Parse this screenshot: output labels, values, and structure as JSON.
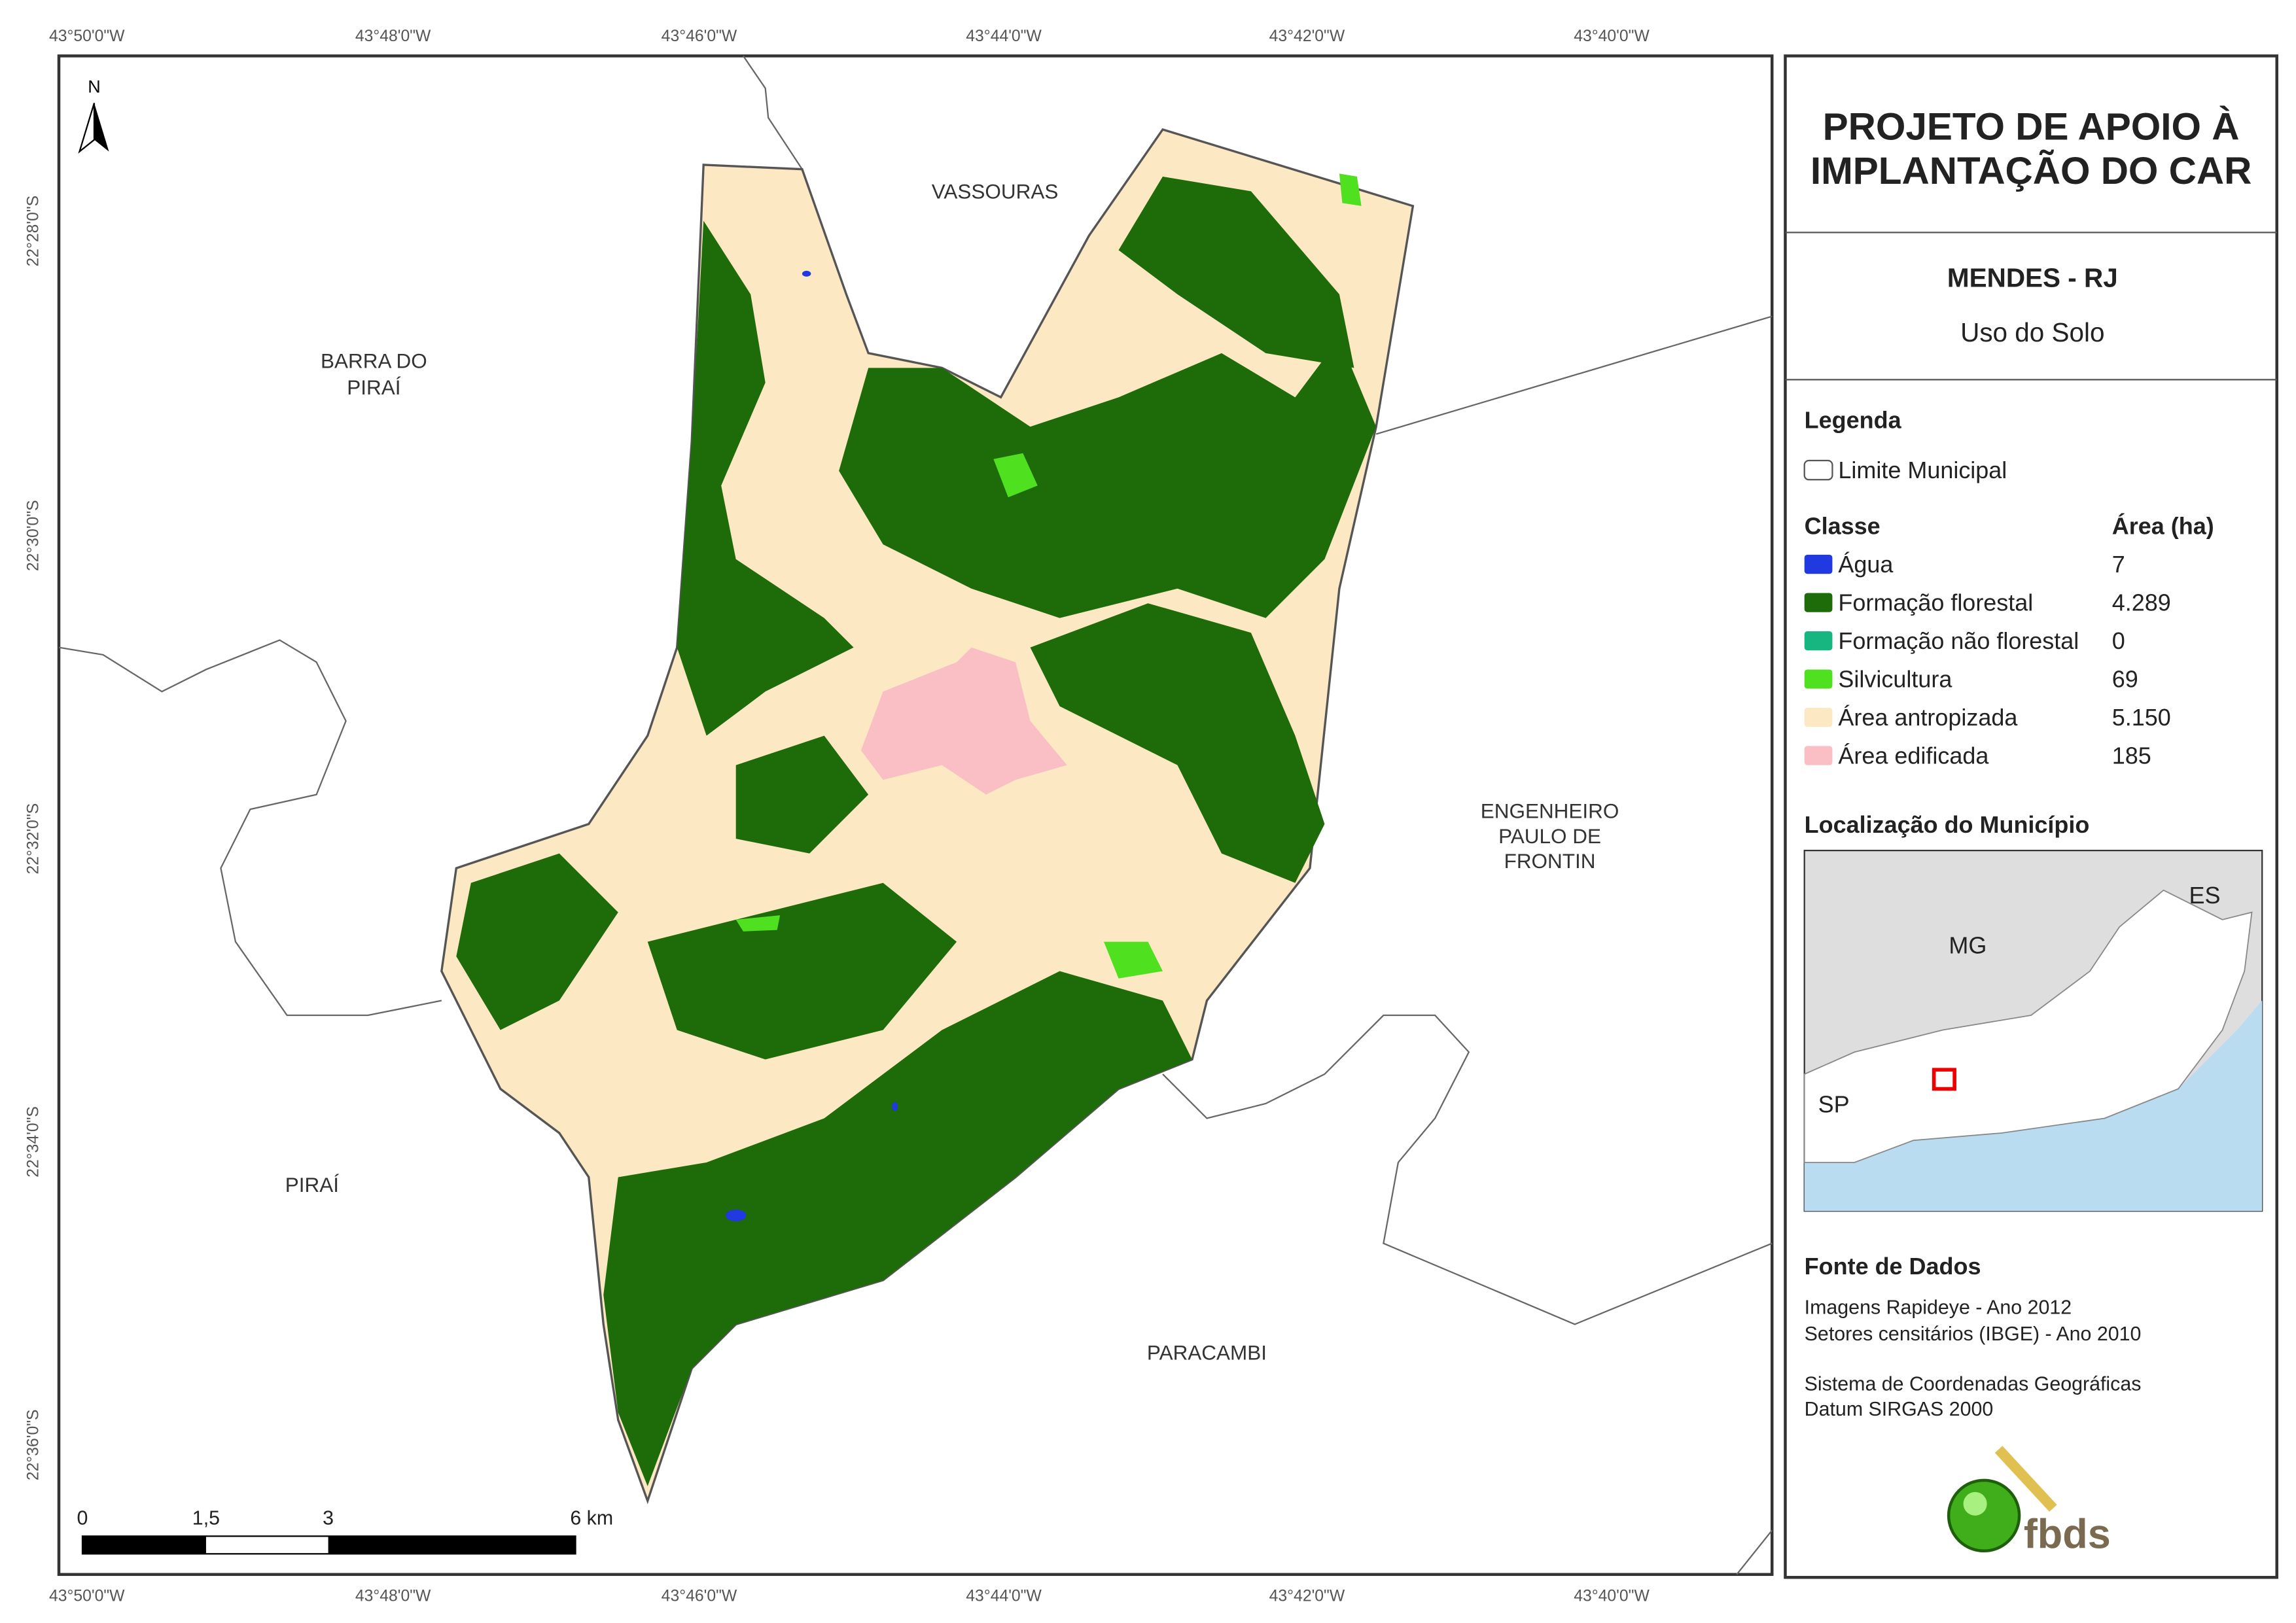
{
  "map": {
    "lon_labels": [
      "43°50'0\"W",
      "43°48'0\"W",
      "43°46'0\"W",
      "43°44'0\"W",
      "43°42'0\"W",
      "43°40'0\"W"
    ],
    "lat_labels": [
      "22°28'0\"S",
      "22°30'0\"S",
      "22°32'0\"S",
      "22°34'0\"S",
      "22°36'0\"S"
    ],
    "places": {
      "vassouras": "VASSOURAS",
      "barra_do_pirai": [
        "BARRA DO",
        "PIRAÍ"
      ],
      "pirai": "PIRAÍ",
      "engenheiro": [
        "ENGENHEIRO",
        "PAULO DE",
        "FRONTIN"
      ],
      "paracambi": "PARACAMBI"
    },
    "north": "N",
    "scale_labels": [
      "0",
      "1,5",
      "3",
      "6 km"
    ]
  },
  "panel": {
    "title": [
      "PROJETO DE APOIO À",
      "IMPLANTAÇÃO DO CAR"
    ],
    "municipality": "MENDES - RJ",
    "theme": "Uso do Solo",
    "legend_heading": "Legenda",
    "limit_label": "Limite Municipal",
    "class_header": "Classe",
    "area_header": "Área (ha)",
    "classes": [
      {
        "name": "Água",
        "area": "7",
        "color": "#2139e0"
      },
      {
        "name": "Formação florestal",
        "area": "4.289",
        "color": "#1e6b0a"
      },
      {
        "name": "Formação não florestal",
        "area": "0",
        "color": "#17b580"
      },
      {
        "name": "Silvicultura",
        "area": "69",
        "color": "#4fe01f"
      },
      {
        "name": "Área antropizada",
        "area": "5.150",
        "color": "#fde8c4"
      },
      {
        "name": "Área edificada",
        "area": "185",
        "color": "#f9bfc4"
      }
    ],
    "location_heading": "Localização do Município",
    "location_labels": [
      "MG",
      "ES",
      "SP"
    ],
    "sources_heading": "Fonte de Dados",
    "sources": [
      "Imagens Rapideye - Ano 2012",
      "Setores censitários (IBGE) - Ano 2010",
      "Sistema de Coordenadas Geográficas",
      "Datum SIRGAS 2000"
    ],
    "logo_text": "fbds"
  }
}
